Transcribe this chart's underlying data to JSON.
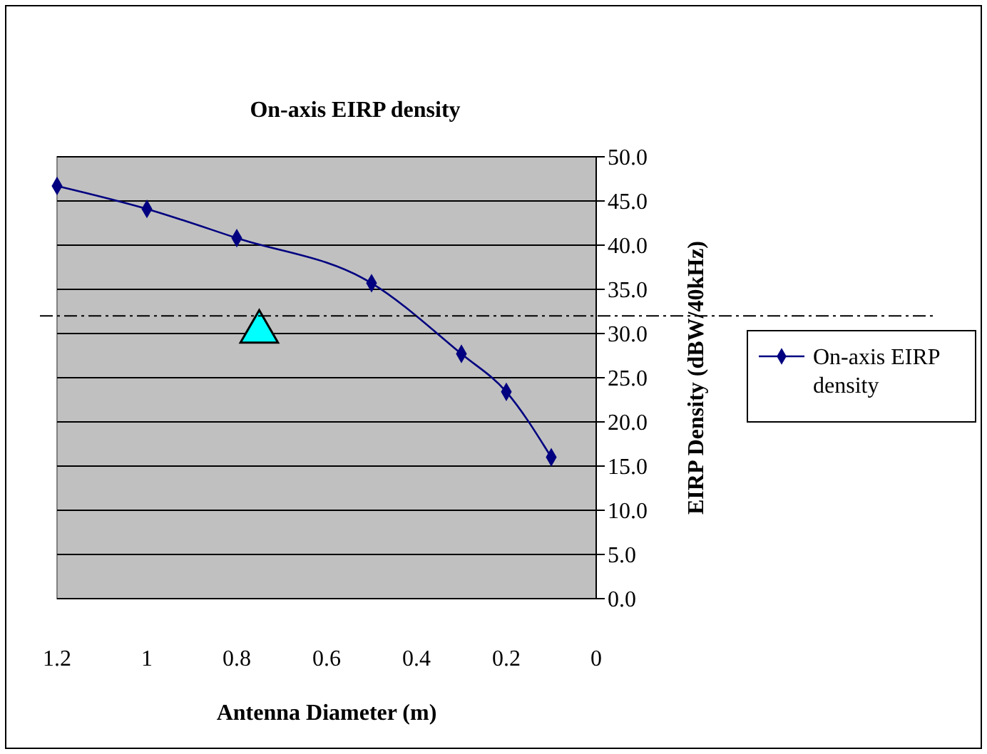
{
  "chart_data": {
    "type": "line",
    "title": "On-axis EIRP density",
    "xlabel": "Antenna Diameter (m)",
    "ylabel": "EIRP Density (dBW/40kHz)",
    "xlim": [
      1.2,
      0
    ],
    "xticks": [
      1.2,
      1,
      0.8,
      0.6,
      0.4,
      0.2,
      0
    ],
    "ylim": [
      0,
      50
    ],
    "yticks": [
      {
        "value": 0,
        "label": "0.0"
      },
      {
        "value": 5,
        "label": "5.0"
      },
      {
        "value": 10,
        "label": "10.0"
      },
      {
        "value": 15,
        "label": "15.0"
      },
      {
        "value": 20,
        "label": "20.0"
      },
      {
        "value": 25,
        "label": "25.0"
      },
      {
        "value": 30,
        "label": "30.0"
      },
      {
        "value": 35,
        "label": "35.0"
      },
      {
        "value": 40,
        "label": "40.0"
      },
      {
        "value": 45,
        "label": "45.0"
      },
      {
        "value": 50,
        "label": "50.0"
      }
    ],
    "grid": "y",
    "legend": "right",
    "series": [
      {
        "name": "On-axis EIRP density",
        "color": "#000080",
        "marker": "diamond",
        "x": [
          1.2,
          1.0,
          0.8,
          0.5,
          0.3,
          0.2,
          0.1
        ],
        "values": [
          46.7,
          44.1,
          40.8,
          35.7,
          27.7,
          23.4,
          16.0
        ]
      },
      {
        "type": "scatter",
        "color": "#00ffff",
        "marker": "triangle",
        "x": [
          0.75
        ],
        "values": [
          30.2
        ]
      }
    ],
    "ref_lines": [
      {
        "axis": "y",
        "value": 32,
        "line_style": "dashed",
        "color": "#000000"
      }
    ]
  }
}
